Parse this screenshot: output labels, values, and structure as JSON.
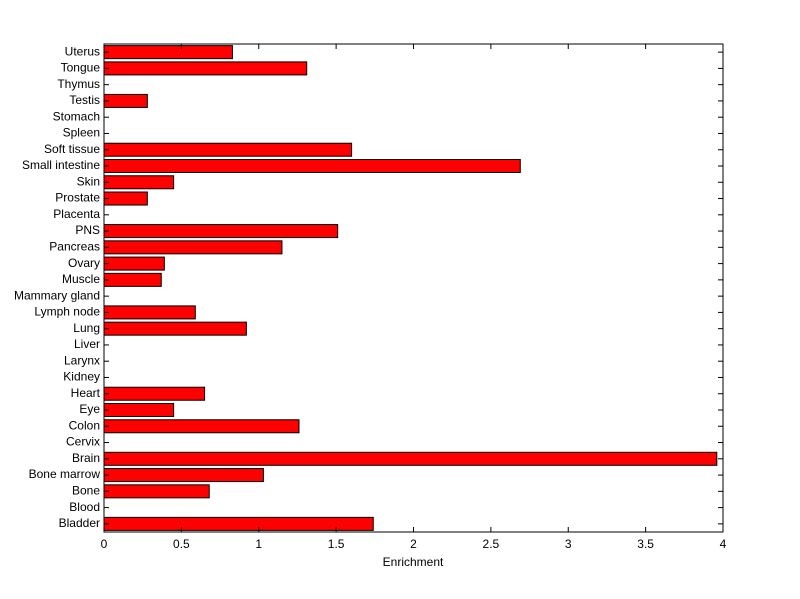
{
  "chart_data": {
    "type": "barh",
    "xlabel": "Enrichment",
    "categories": [
      "Bladder",
      "Blood",
      "Bone",
      "Bone marrow",
      "Brain",
      "Cervix",
      "Colon",
      "Eye",
      "Heart",
      "Kidney",
      "Larynx",
      "Liver",
      "Lung",
      "Lymph node",
      "Mammary gland",
      "Muscle",
      "Ovary",
      "Pancreas",
      "PNS",
      "Placenta",
      "Prostate",
      "Skin",
      "Small intestine",
      "Soft tissue",
      "Spleen",
      "Stomach",
      "Testis",
      "Thymus",
      "Tongue",
      "Uterus"
    ],
    "values": [
      1.74,
      0,
      0.68,
      1.03,
      3.96,
      0,
      1.26,
      0.45,
      0.65,
      0,
      0,
      0,
      0.92,
      0.59,
      0,
      0.37,
      0.39,
      1.15,
      1.51,
      0,
      0.28,
      0.45,
      2.69,
      1.6,
      0,
      0,
      0.28,
      0,
      1.31,
      0.83
    ],
    "color": "#ff0000",
    "xlim": [
      0,
      4
    ],
    "xticks": [
      0,
      0.5,
      1,
      1.5,
      2,
      2.5,
      3,
      3.5,
      4
    ]
  }
}
